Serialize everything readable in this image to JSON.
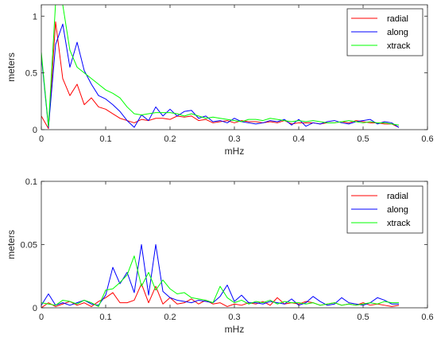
{
  "chart_data": [
    {
      "type": "line",
      "xlabel": "mHz",
      "ylabel": "meters",
      "xlim": [
        0,
        0.6
      ],
      "ylim": [
        0,
        1.1
      ],
      "xticks": [
        "0",
        "0.1",
        "0.2",
        "0.3",
        "0.4",
        "0.5",
        "0.6"
      ],
      "yticks": [
        "0",
        "0.5",
        "1"
      ],
      "grid": false,
      "legend_position": "top-right",
      "x": [
        0,
        0.0111,
        0.0222,
        0.0333,
        0.0444,
        0.0556,
        0.0667,
        0.0778,
        0.0889,
        0.1,
        0.1111,
        0.1222,
        0.1333,
        0.1444,
        0.1556,
        0.1667,
        0.1778,
        0.1889,
        0.2,
        0.2111,
        0.2222,
        0.2333,
        0.2444,
        0.2556,
        0.2667,
        0.2778,
        0.2889,
        0.3,
        0.3111,
        0.3222,
        0.3333,
        0.3444,
        0.3556,
        0.3667,
        0.3778,
        0.3889,
        0.4,
        0.4111,
        0.4222,
        0.4333,
        0.4444,
        0.4556,
        0.4667,
        0.4778,
        0.4889,
        0.5,
        0.5111,
        0.5222,
        0.5333,
        0.5444,
        0.5556
      ],
      "series": [
        {
          "name": "radial",
          "color": "#ff0000",
          "values": [
            0.12,
            0.01,
            0.95,
            0.45,
            0.3,
            0.4,
            0.22,
            0.28,
            0.2,
            0.18,
            0.14,
            0.1,
            0.08,
            0.06,
            0.09,
            0.08,
            0.1,
            0.1,
            0.09,
            0.12,
            0.11,
            0.12,
            0.08,
            0.09,
            0.06,
            0.07,
            0.08,
            0.06,
            0.08,
            0.07,
            0.07,
            0.06,
            0.07,
            0.06,
            0.08,
            0.05,
            0.06,
            0.06,
            0.06,
            0.05,
            0.06,
            0.06,
            0.07,
            0.06,
            0.08,
            0.07,
            0.06,
            0.06,
            0.05,
            0.05,
            0.02
          ]
        },
        {
          "name": "along",
          "color": "#0000ff",
          "values": [
            0.65,
            0.02,
            0.75,
            0.93,
            0.55,
            0.77,
            0.52,
            0.4,
            0.3,
            0.27,
            0.22,
            0.16,
            0.08,
            0.02,
            0.13,
            0.08,
            0.2,
            0.12,
            0.18,
            0.12,
            0.16,
            0.17,
            0.1,
            0.12,
            0.07,
            0.08,
            0.06,
            0.1,
            0.07,
            0.06,
            0.05,
            0.06,
            0.08,
            0.07,
            0.09,
            0.04,
            0.09,
            0.03,
            0.06,
            0.05,
            0.07,
            0.08,
            0.06,
            0.05,
            0.07,
            0.08,
            0.09,
            0.05,
            0.07,
            0.06,
            0.02
          ]
        },
        {
          "name": "xtrack",
          "color": "#00ff00",
          "values": [
            0.68,
            0.03,
            1.12,
            1.1,
            0.7,
            0.55,
            0.5,
            0.45,
            0.4,
            0.35,
            0.32,
            0.28,
            0.2,
            0.14,
            0.13,
            0.14,
            0.15,
            0.15,
            0.15,
            0.14,
            0.12,
            0.14,
            0.12,
            0.1,
            0.11,
            0.1,
            0.09,
            0.08,
            0.07,
            0.09,
            0.09,
            0.08,
            0.1,
            0.09,
            0.08,
            0.07,
            0.08,
            0.07,
            0.08,
            0.07,
            0.06,
            0.06,
            0.07,
            0.08,
            0.07,
            0.06,
            0.07,
            0.06,
            0.06,
            0.05,
            0.04
          ]
        }
      ]
    },
    {
      "type": "line",
      "xlabel": "mHz",
      "ylabel": "meters",
      "xlim": [
        0,
        0.6
      ],
      "ylim": [
        0,
        0.1
      ],
      "xticks": [
        "0",
        "0.1",
        "0.2",
        "0.3",
        "0.4",
        "0.5",
        "0.6"
      ],
      "yticks": [
        "0",
        "0.05",
        "0.1"
      ],
      "grid": false,
      "legend_position": "top-right",
      "x": [
        0,
        0.0111,
        0.0222,
        0.0333,
        0.0444,
        0.0556,
        0.0667,
        0.0778,
        0.0889,
        0.1,
        0.1111,
        0.1222,
        0.1333,
        0.1444,
        0.1556,
        0.1667,
        0.1778,
        0.1889,
        0.2,
        0.2111,
        0.2222,
        0.2333,
        0.2444,
        0.2556,
        0.2667,
        0.2778,
        0.2889,
        0.3,
        0.3111,
        0.3222,
        0.3333,
        0.3444,
        0.3556,
        0.3667,
        0.3778,
        0.3889,
        0.4,
        0.4111,
        0.4222,
        0.4333,
        0.4444,
        0.4556,
        0.4667,
        0.4778,
        0.4889,
        0.5,
        0.5111,
        0.5222,
        0.5333,
        0.5444,
        0.5556
      ],
      "series": [
        {
          "name": "radial",
          "color": "#ff0000",
          "values": [
            0.0,
            0.004,
            0.001,
            0.003,
            0.005,
            0.002,
            0.004,
            0.001,
            0.005,
            0.008,
            0.012,
            0.004,
            0.004,
            0.006,
            0.019,
            0.004,
            0.017,
            0.003,
            0.008,
            0.003,
            0.004,
            0.007,
            0.003,
            0.006,
            0.003,
            0.004,
            0.001,
            0.003,
            0.002,
            0.004,
            0.003,
            0.005,
            0.002,
            0.008,
            0.003,
            0.004,
            0.003,
            0.005,
            0.004,
            0.002,
            0.003,
            0.004,
            0.002,
            0.003,
            0.002,
            0.004,
            0.002,
            0.003,
            0.002,
            0.001,
            0.002
          ]
        },
        {
          "name": "along",
          "color": "#0000ff",
          "values": [
            0.002,
            0.011,
            0.002,
            0.004,
            0.002,
            0.004,
            0.006,
            0.003,
            0.002,
            0.01,
            0.032,
            0.019,
            0.028,
            0.012,
            0.05,
            0.01,
            0.05,
            0.013,
            0.008,
            0.006,
            0.005,
            0.004,
            0.006,
            0.005,
            0.004,
            0.009,
            0.018,
            0.005,
            0.01,
            0.004,
            0.004,
            0.003,
            0.005,
            0.004,
            0.003,
            0.007,
            0.002,
            0.004,
            0.009,
            0.005,
            0.002,
            0.003,
            0.008,
            0.004,
            0.003,
            0.002,
            0.004,
            0.008,
            0.006,
            0.003,
            0.003
          ]
        },
        {
          "name": "xtrack",
          "color": "#00ff00",
          "values": [
            0.004,
            0.003,
            0.002,
            0.006,
            0.005,
            0.003,
            0.006,
            0.004,
            0.001,
            0.014,
            0.015,
            0.02,
            0.026,
            0.041,
            0.017,
            0.028,
            0.014,
            0.022,
            0.015,
            0.011,
            0.012,
            0.008,
            0.007,
            0.006,
            0.004,
            0.017,
            0.008,
            0.004,
            0.006,
            0.003,
            0.005,
            0.004,
            0.006,
            0.003,
            0.005,
            0.004,
            0.004,
            0.003,
            0.004,
            0.002,
            0.003,
            0.004,
            0.002,
            0.003,
            0.002,
            0.003,
            0.004,
            0.003,
            0.005,
            0.004,
            0.004
          ]
        }
      ]
    }
  ]
}
